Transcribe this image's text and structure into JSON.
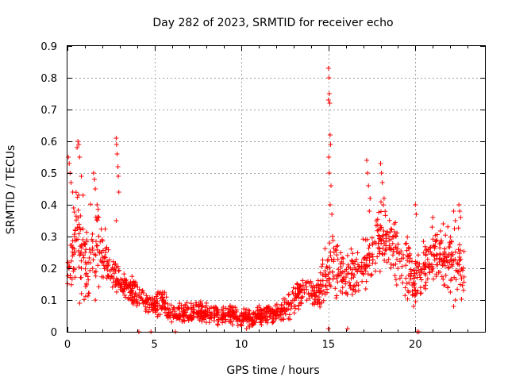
{
  "chart_data": {
    "type": "scatter",
    "title": "Day 282 of 2023, SRMTID for receiver echo",
    "xlabel": "GPS time / hours",
    "ylabel": "SRMTID / TECUs",
    "xlim": [
      0,
      24
    ],
    "ylim": [
      0,
      0.9
    ],
    "xticks": [
      0,
      5,
      10,
      15,
      20
    ],
    "xtick_labels": [
      "0",
      "5",
      "10",
      "15",
      "20"
    ],
    "yticks": [
      0,
      0.1,
      0.2,
      0.3,
      0.4,
      0.5,
      0.6,
      0.7,
      0.8,
      0.9
    ],
    "ytick_labels": [
      "0",
      "0.1",
      "0.2",
      "0.3",
      "0.4",
      "0.5",
      "0.6",
      "0.7",
      "0.8",
      "0.9"
    ],
    "grid": true,
    "marker": "+",
    "color": "#ff0000",
    "series": [
      {
        "name": "receiver echo",
        "trend_x": [
          0.0,
          0.5,
          1.0,
          1.5,
          2.0,
          2.5,
          3.0,
          3.5,
          4.0,
          4.5,
          5.0,
          5.5,
          6.0,
          7.0,
          8.0,
          9.0,
          10.0,
          10.5,
          11.0,
          12.0,
          13.0,
          13.5,
          14.0,
          14.5,
          15.0,
          15.5,
          16.0,
          17.0,
          17.5,
          18.0,
          19.0,
          19.5,
          20.0,
          20.5,
          21.0,
          22.0,
          22.5,
          22.8
        ],
        "trend_y": [
          0.17,
          0.33,
          0.2,
          0.3,
          0.24,
          0.2,
          0.15,
          0.14,
          0.12,
          0.1,
          0.08,
          0.09,
          0.06,
          0.06,
          0.06,
          0.05,
          0.05,
          0.04,
          0.05,
          0.06,
          0.09,
          0.14,
          0.13,
          0.12,
          0.22,
          0.2,
          0.18,
          0.2,
          0.25,
          0.3,
          0.24,
          0.2,
          0.16,
          0.2,
          0.25,
          0.22,
          0.22,
          0.18
        ],
        "spread": [
          0.04,
          0.1,
          0.08,
          0.09,
          0.07,
          0.04,
          0.03,
          0.03,
          0.03,
          0.025,
          0.02,
          0.03,
          0.02,
          0.02,
          0.02,
          0.02,
          0.02,
          0.02,
          0.02,
          0.02,
          0.03,
          0.03,
          0.03,
          0.03,
          0.07,
          0.06,
          0.05,
          0.06,
          0.07,
          0.07,
          0.06,
          0.06,
          0.05,
          0.07,
          0.06,
          0.06,
          0.06,
          0.05
        ],
        "highlights": [
          [
            0.05,
            0.55
          ],
          [
            0.1,
            0.53
          ],
          [
            0.15,
            0.5
          ],
          [
            0.2,
            0.47
          ],
          [
            0.3,
            0.44
          ],
          [
            0.35,
            0.39
          ],
          [
            0.55,
            0.58
          ],
          [
            0.6,
            0.6
          ],
          [
            0.65,
            0.59
          ],
          [
            0.7,
            0.55
          ],
          [
            0.8,
            0.49
          ],
          [
            0.9,
            0.43
          ],
          [
            1.5,
            0.5
          ],
          [
            1.55,
            0.48
          ],
          [
            1.6,
            0.45
          ],
          [
            1.7,
            0.4
          ],
          [
            1.8,
            0.36
          ],
          [
            2.8,
            0.61
          ],
          [
            2.82,
            0.59
          ],
          [
            2.85,
            0.56
          ],
          [
            2.9,
            0.52
          ],
          [
            2.92,
            0.49
          ],
          [
            2.95,
            0.44
          ],
          [
            2.8,
            0.35
          ],
          [
            0.7,
            0.09
          ],
          [
            1.6,
            0.1
          ],
          [
            4.1,
            0.0
          ],
          [
            4.8,
            0.0
          ],
          [
            6.2,
            0.0
          ],
          [
            10.3,
            0.01
          ],
          [
            15.0,
            0.83
          ],
          [
            15.03,
            0.8
          ],
          [
            15.05,
            0.75
          ],
          [
            15.0,
            0.73
          ],
          [
            15.08,
            0.72
          ],
          [
            15.1,
            0.62
          ],
          [
            15.12,
            0.59
          ],
          [
            15.02,
            0.55
          ],
          [
            15.05,
            0.5
          ],
          [
            15.15,
            0.46
          ],
          [
            15.1,
            0.4
          ],
          [
            15.2,
            0.37
          ],
          [
            15.0,
            0.01
          ],
          [
            16.1,
            0.01
          ],
          [
            17.2,
            0.54
          ],
          [
            17.25,
            0.5
          ],
          [
            17.3,
            0.46
          ],
          [
            17.4,
            0.42
          ],
          [
            17.35,
            0.38
          ],
          [
            18.0,
            0.53
          ],
          [
            18.05,
            0.5
          ],
          [
            18.1,
            0.47
          ],
          [
            18.2,
            0.42
          ],
          [
            20.0,
            0.4
          ],
          [
            20.05,
            0.37
          ],
          [
            20.1,
            0.0
          ],
          [
            20.2,
            0.0
          ],
          [
            22.2,
            0.38
          ],
          [
            22.3,
            0.35
          ],
          [
            22.5,
            0.4
          ],
          [
            22.55,
            0.38
          ],
          [
            22.6,
            0.36
          ],
          [
            21.0,
            0.36
          ],
          [
            21.6,
            0.34
          ],
          [
            22.2,
            0.08
          ],
          [
            22.3,
            0.1
          ],
          [
            19.9,
            0.08
          ]
        ]
      }
    ]
  }
}
